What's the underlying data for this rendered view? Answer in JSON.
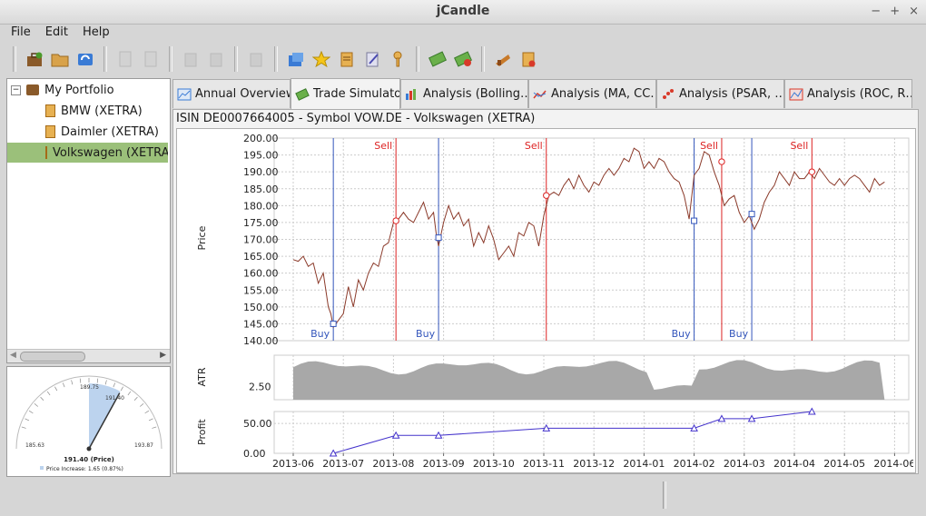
{
  "window": {
    "title": "jCandle",
    "controls": [
      "−",
      "+",
      "×"
    ]
  },
  "menu": [
    "File",
    "Edit",
    "Help"
  ],
  "toolbar_icons": [
    "new-portfolio-icon",
    "open-folder-icon",
    "refresh-icon",
    "|",
    "doc-icon",
    "doc-icon",
    "|",
    "clipboard-icon",
    "clipboard-icon",
    "|",
    "copy-icon",
    "|",
    "import-icon",
    "star-icon",
    "notes-icon",
    "edit-icon",
    "key-icon",
    "|",
    "buy-icon",
    "sell-icon",
    "|",
    "chart-icon",
    "report-icon"
  ],
  "tree": {
    "root": "My Portfolio",
    "items": [
      "BMW (XETRA)",
      "Daimler (XETRA)",
      "Volkswagen (XETRA)"
    ],
    "selected": 2
  },
  "gauge": {
    "min_label": "185.63",
    "max_label": "193.87",
    "left_label": "189.75",
    "right_label": "191.40",
    "price_label": "191.40 (Price)",
    "increase_label": "Price Increase: 1.65 (0.87%)",
    "value_fraction": 0.7
  },
  "tabs": [
    "Annual Overview",
    "Trade Simulator",
    "Analysis (Bolling…",
    "Analysis (MA, CC…",
    "Analysis (PSAR, …",
    "Analysis (ROC, R…"
  ],
  "active_tab": 1,
  "info_line": "ISIN DE0007664005 - Symbol VOW.DE - Volkswagen (XETRA)",
  "colors": {
    "price": "#8b3a2a",
    "buy": "#3355bb",
    "sell": "#dd2222",
    "atr": "#a8a8a8",
    "profit": "#4433cc"
  },
  "chart_data": {
    "type": "line",
    "x_ticks": [
      "2013-06",
      "2013-07",
      "2013-08",
      "2013-09",
      "2013-10",
      "2013-11",
      "2013-12",
      "2014-01",
      "2014-02",
      "2014-03",
      "2014-04",
      "2014-05",
      "2014-06"
    ],
    "price": {
      "ylabel": "Price",
      "ylim": [
        140,
        200
      ],
      "y_ticks": [
        "200.00",
        "195.00",
        "190.00",
        "185.00",
        "180.00",
        "175.00",
        "170.00",
        "165.00",
        "160.00",
        "155.00",
        "150.00",
        "145.00",
        "140.00"
      ],
      "series": [
        [
          0,
          164
        ],
        [
          0.1,
          163.5
        ],
        [
          0.2,
          165
        ],
        [
          0.3,
          162
        ],
        [
          0.4,
          163
        ],
        [
          0.5,
          157
        ],
        [
          0.6,
          160
        ],
        [
          0.7,
          150
        ],
        [
          0.75,
          148
        ],
        [
          0.8,
          144
        ],
        [
          0.9,
          146
        ],
        [
          1.0,
          148
        ],
        [
          1.1,
          156
        ],
        [
          1.2,
          150
        ],
        [
          1.3,
          158
        ],
        [
          1.4,
          155
        ],
        [
          1.5,
          160
        ],
        [
          1.6,
          163
        ],
        [
          1.7,
          162
        ],
        [
          1.8,
          168
        ],
        [
          1.9,
          169
        ],
        [
          2.0,
          175
        ],
        [
          2.1,
          176
        ],
        [
          2.2,
          178
        ],
        [
          2.3,
          176
        ],
        [
          2.4,
          175
        ],
        [
          2.5,
          178
        ],
        [
          2.6,
          181
        ],
        [
          2.7,
          176
        ],
        [
          2.8,
          178
        ],
        [
          2.85,
          172
        ],
        [
          2.9,
          168
        ],
        [
          3.0,
          175
        ],
        [
          3.1,
          180
        ],
        [
          3.2,
          176
        ],
        [
          3.3,
          178
        ],
        [
          3.4,
          174
        ],
        [
          3.5,
          176
        ],
        [
          3.6,
          168
        ],
        [
          3.7,
          172
        ],
        [
          3.8,
          169
        ],
        [
          3.9,
          174
        ],
        [
          4.0,
          170
        ],
        [
          4.1,
          164
        ],
        [
          4.2,
          166
        ],
        [
          4.3,
          168
        ],
        [
          4.4,
          165
        ],
        [
          4.5,
          172
        ],
        [
          4.6,
          171
        ],
        [
          4.7,
          175
        ],
        [
          4.8,
          174
        ],
        [
          4.9,
          168
        ],
        [
          5.0,
          177
        ],
        [
          5.05,
          180
        ],
        [
          5.1,
          183
        ],
        [
          5.2,
          184
        ],
        [
          5.3,
          183
        ],
        [
          5.4,
          186
        ],
        [
          5.5,
          188
        ],
        [
          5.6,
          185
        ],
        [
          5.7,
          189
        ],
        [
          5.8,
          186
        ],
        [
          5.9,
          184
        ],
        [
          6.0,
          187
        ],
        [
          6.1,
          186
        ],
        [
          6.2,
          189
        ],
        [
          6.3,
          191
        ],
        [
          6.4,
          189
        ],
        [
          6.5,
          191
        ],
        [
          6.6,
          194
        ],
        [
          6.7,
          193
        ],
        [
          6.8,
          197
        ],
        [
          6.9,
          196
        ],
        [
          7.0,
          191
        ],
        [
          7.1,
          193
        ],
        [
          7.2,
          191
        ],
        [
          7.3,
          194
        ],
        [
          7.4,
          193
        ],
        [
          7.5,
          190
        ],
        [
          7.6,
          188
        ],
        [
          7.7,
          187
        ],
        [
          7.8,
          183
        ],
        [
          7.9,
          176
        ],
        [
          8.0,
          189
        ],
        [
          8.1,
          191
        ],
        [
          8.2,
          196
        ],
        [
          8.3,
          195
        ],
        [
          8.4,
          190
        ],
        [
          8.5,
          186
        ],
        [
          8.6,
          180
        ],
        [
          8.7,
          182
        ],
        [
          8.8,
          183
        ],
        [
          8.9,
          178
        ],
        [
          9.0,
          175
        ],
        [
          9.1,
          177
        ],
        [
          9.2,
          173
        ],
        [
          9.3,
          176
        ],
        [
          9.4,
          181
        ],
        [
          9.5,
          184
        ],
        [
          9.6,
          186
        ],
        [
          9.7,
          190
        ],
        [
          9.8,
          188
        ],
        [
          9.9,
          186
        ],
        [
          10.0,
          190
        ],
        [
          10.1,
          188
        ],
        [
          10.2,
          188
        ],
        [
          10.3,
          190
        ],
        [
          10.4,
          188
        ],
        [
          10.5,
          191
        ],
        [
          10.6,
          189
        ],
        [
          10.7,
          187
        ],
        [
          10.8,
          186
        ],
        [
          10.9,
          188
        ],
        [
          11.0,
          186
        ],
        [
          11.1,
          188
        ],
        [
          11.2,
          189
        ],
        [
          11.3,
          188
        ],
        [
          11.4,
          186
        ],
        [
          11.5,
          184
        ],
        [
          11.6,
          188
        ],
        [
          11.7,
          186
        ],
        [
          11.8,
          187
        ]
      ],
      "buy_markers": [
        [
          0.8,
          145
        ],
        [
          2.9,
          170.5
        ],
        [
          8.0,
          175.5
        ],
        [
          9.15,
          177.5
        ]
      ],
      "sell_markers": [
        [
          2.05,
          175.5
        ],
        [
          5.05,
          183
        ],
        [
          8.55,
          193
        ],
        [
          10.35,
          190
        ]
      ],
      "buy_lines": [
        0.8,
        2.9,
        8.0,
        9.15
      ],
      "sell_lines": [
        2.05,
        5.05,
        8.55,
        10.35
      ],
      "buy_label": "Buy",
      "sell_label": "Sell"
    },
    "atr": {
      "ylabel": "ATR",
      "y_ticks": [
        "2.50"
      ],
      "ylim": [
        1.8,
        4.2
      ]
    },
    "profit": {
      "ylabel": "Profit",
      "ylim": [
        0,
        70
      ],
      "y_ticks": [
        "50.00",
        "0.00"
      ],
      "series": [
        [
          0.8,
          0
        ],
        [
          2.05,
          30
        ],
        [
          2.9,
          30
        ],
        [
          5.05,
          42
        ],
        [
          8.0,
          42
        ],
        [
          8.55,
          58
        ],
        [
          9.15,
          58
        ],
        [
          10.35,
          70
        ]
      ]
    }
  }
}
